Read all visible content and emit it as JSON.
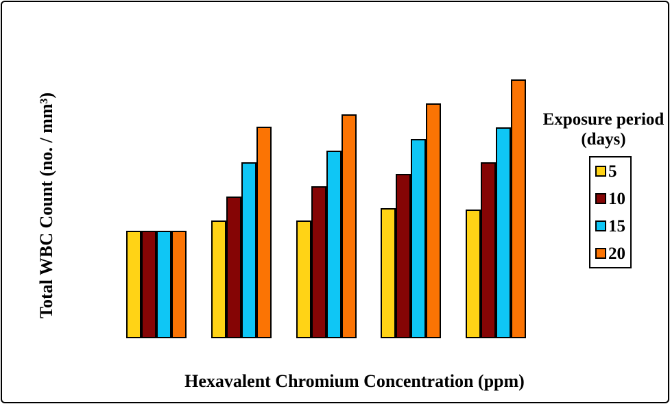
{
  "frame": {
    "background_color": "#ffffff",
    "border_color": "#000000"
  },
  "chart_data": {
    "type": "bar",
    "title": "",
    "xlabel": "Hexavalent Chromium Concentration (ppm)",
    "ylabel": "Total WBC Count (no. / mm³)",
    "x_tick_labels_visible": false,
    "y_tick_labels_visible": false,
    "gridlines": false,
    "num_groups": 5,
    "bar_outline_color": "#000000",
    "value_unit": "relative bar height (no numeric axis shown in figure)",
    "ylim": [
      0,
      398
    ],
    "legend": {
      "title_line1": "Exposure period",
      "title_line2": "(days)",
      "position": "right",
      "items": [
        {
          "label": "5",
          "color": "#FFD316"
        },
        {
          "label": "10",
          "color": "#850505"
        },
        {
          "label": "15",
          "color": "#0FC6F5"
        },
        {
          "label": "20",
          "color": "#FB7404"
        }
      ]
    },
    "series": [
      {
        "name": "5",
        "color": "#FFD316",
        "values": [
          157,
          172,
          172,
          190,
          188
        ]
      },
      {
        "name": "10",
        "color": "#850505",
        "values": [
          157,
          207,
          222,
          240,
          257
        ]
      },
      {
        "name": "15",
        "color": "#0FC6F5",
        "values": [
          157,
          257,
          274,
          291,
          308
        ]
      },
      {
        "name": "20",
        "color": "#FB7404",
        "values": [
          157,
          309,
          327,
          343,
          378
        ]
      }
    ]
  }
}
